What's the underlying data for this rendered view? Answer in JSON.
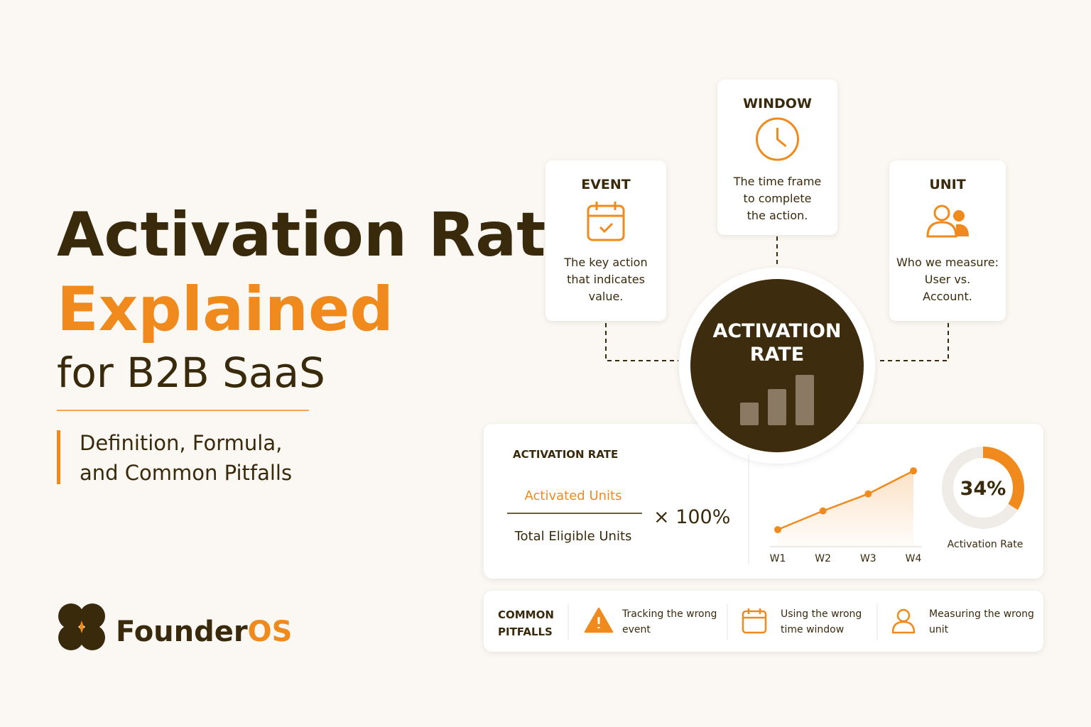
{
  "header": {
    "title_line1": "Activation Rate",
    "title_line2": "Explained",
    "title_line3": "for B2B SaaS",
    "subtitle_line1": "Definition, Formula,",
    "subtitle_line2": "and Common Pitfalls"
  },
  "brand": {
    "name_a": "Founder",
    "name_b": "OS"
  },
  "concepts": [
    {
      "title": "EVENT",
      "lines": [
        "The key action",
        "that indicates",
        "value."
      ]
    },
    {
      "title": "WINDOW",
      "lines": [
        "The time frame",
        "to complete",
        "the action."
      ]
    },
    {
      "title": "UNIT",
      "lines": [
        "Who we measure:",
        "User vs.",
        "Account."
      ]
    }
  ],
  "center": {
    "lines": [
      "ACTIVATION",
      "RATE"
    ]
  },
  "formula": {
    "label": "ACTIVATION RATE",
    "numerator": "Activated Units",
    "denominator": "Total Eligible Units",
    "multiplier": "× 100%"
  },
  "chart_data": [
    {
      "type": "line",
      "categories": [
        "W1",
        "W2",
        "W3",
        "W4"
      ],
      "values": [
        20,
        42,
        62,
        89
      ],
      "ylim": [
        0,
        100
      ],
      "color": "#f08a1c"
    },
    {
      "type": "donut",
      "title": "Activation Rate",
      "values": [
        34
      ],
      "value_labels": [
        "34%"
      ],
      "total": 100,
      "color": "#f08a1c",
      "track_color": "#efebe6"
    }
  ],
  "pitfalls": {
    "title_lines": [
      "COMMON",
      "PITFALLS"
    ],
    "items": [
      {
        "lines": [
          "Tracking the wrong",
          "event"
        ]
      },
      {
        "lines": [
          "Using the wrong",
          "time window"
        ]
      },
      {
        "lines": [
          "Measuring the wrong",
          "unit"
        ]
      }
    ]
  }
}
